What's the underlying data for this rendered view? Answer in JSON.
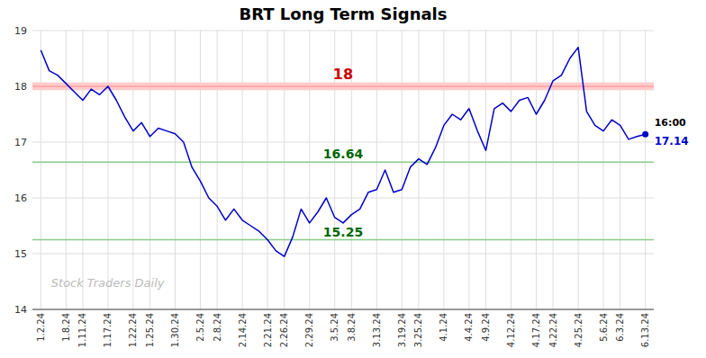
{
  "chart_data": {
    "type": "line",
    "title": "BRT Long Term Signals",
    "categories": [
      "1.2.24",
      null,
      null,
      "1.8.24",
      null,
      "1.11.24",
      null,
      null,
      "1.17.24",
      null,
      null,
      "1.22.24",
      null,
      "1.25.24",
      null,
      null,
      "1.30.24",
      null,
      null,
      "2.5.24",
      null,
      "2.8.24",
      null,
      null,
      "2.14.24",
      null,
      null,
      "2.21.24",
      null,
      "2.26.24",
      null,
      null,
      "2.29.24",
      null,
      null,
      "3.5.24",
      null,
      "3.8.24",
      null,
      null,
      "3.13.24",
      null,
      null,
      "3.19.24",
      null,
      "3.25.24",
      null,
      null,
      "4.1.24",
      null,
      null,
      "4.4.24",
      null,
      "4.9.24",
      null,
      null,
      "4.12.24",
      null,
      null,
      "4.17.24",
      null,
      "4.22.24",
      null,
      null,
      "4.25.24",
      null,
      null,
      "5.6.24",
      null,
      "6.3.24",
      null,
      null,
      "6.13.24"
    ],
    "values": [
      18.65,
      18.28,
      18.2,
      18.05,
      17.9,
      17.75,
      17.95,
      17.85,
      18.0,
      17.75,
      17.45,
      17.2,
      17.35,
      17.1,
      17.25,
      17.2,
      17.15,
      17.0,
      16.55,
      16.3,
      16.0,
      15.85,
      15.6,
      15.8,
      15.6,
      15.5,
      15.4,
      15.25,
      15.05,
      14.95,
      15.3,
      15.8,
      15.55,
      15.75,
      16.0,
      15.65,
      15.55,
      15.7,
      15.8,
      16.1,
      16.15,
      16.5,
      16.1,
      16.15,
      16.55,
      16.7,
      16.6,
      16.9,
      17.3,
      17.5,
      17.4,
      17.6,
      17.2,
      16.85,
      17.6,
      17.7,
      17.55,
      17.75,
      17.8,
      17.5,
      17.75,
      18.1,
      18.2,
      18.5,
      18.7,
      17.55,
      17.3,
      17.2,
      17.4,
      17.3,
      17.05,
      17.1,
      17.14
    ],
    "color": "#0000cc",
    "ylim": [
      14.0,
      19.0
    ],
    "yticks": [
      14,
      15,
      16,
      17,
      18,
      19
    ],
    "grid": true,
    "hlines": [
      {
        "value": 18.0,
        "label": "18",
        "color": "#ff8888",
        "label_color": "#cc0000",
        "band": [
          17.93,
          18.07
        ],
        "band_color": "#ffcccc"
      },
      {
        "value": 16.64,
        "label": "16.64",
        "color": "#88cc88",
        "label_color": "#006600"
      },
      {
        "value": 15.25,
        "label": "15.25",
        "color": "#88cc88",
        "label_color": "#006600"
      }
    ],
    "annotations": [
      {
        "text": "16:00"
      },
      {
        "text": "17.14"
      }
    ],
    "watermark": "Stock Traders Daily"
  }
}
